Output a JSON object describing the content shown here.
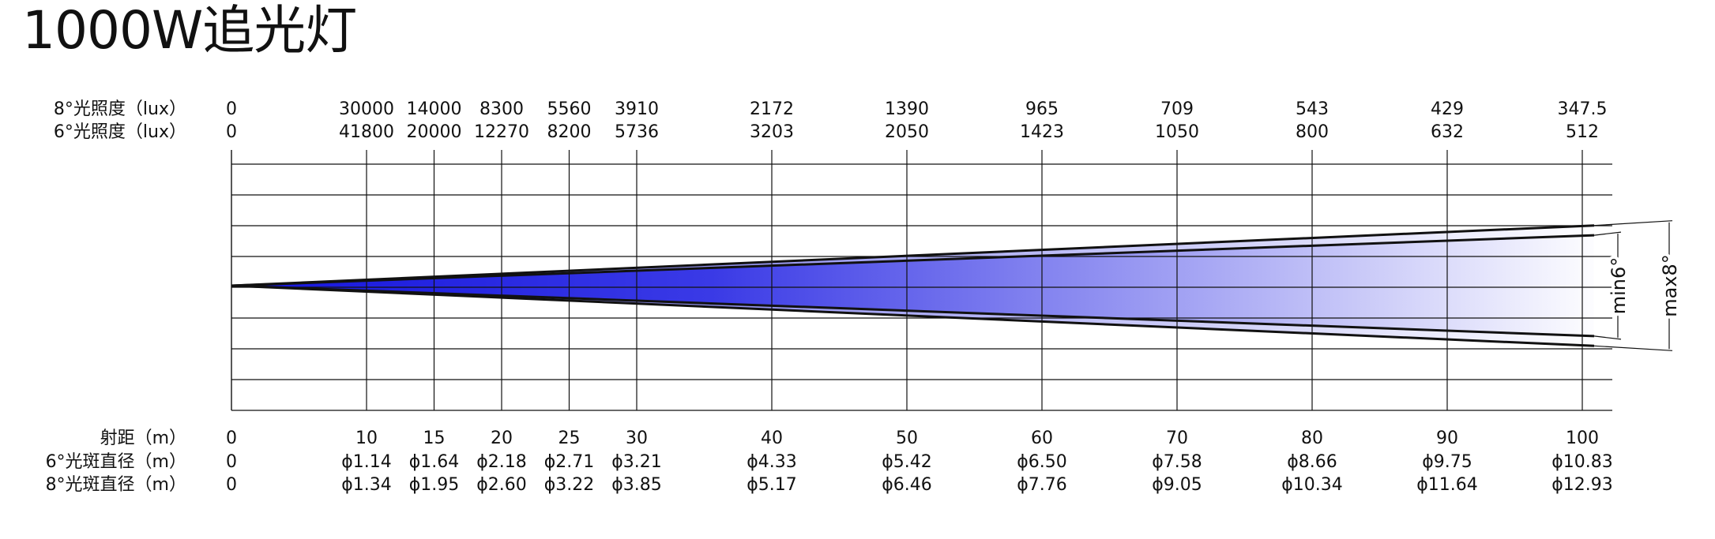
{
  "title": "1000W追光灯",
  "labels": {
    "lux8": "8°光照度（lux）",
    "lux6": "6°光照度（lux）",
    "distance": "射距（m）",
    "dia6": "6°光斑直径（m）",
    "dia8": "8°光斑直径（m）"
  },
  "beam_labels": {
    "min": "min6°",
    "max": "max8°"
  },
  "colors": {
    "beam_dark": "#1515dd",
    "beam_light": "#ffffff",
    "lines": "#111111"
  },
  "chart_data": {
    "type": "table",
    "distance_m": [
      0,
      10,
      15,
      20,
      25,
      30,
      40,
      50,
      60,
      70,
      80,
      90,
      100
    ],
    "distance_labels": [
      "0",
      "10",
      "15",
      "20",
      "25",
      "30",
      "40",
      "50",
      "60",
      "70",
      "80",
      "90",
      "100"
    ],
    "lux_8deg": [
      "0",
      "30000",
      "14000",
      "8300",
      "5560",
      "3910",
      "2172",
      "1390",
      "965",
      "709",
      "543",
      "429",
      "347.5"
    ],
    "lux_6deg": [
      "0",
      "41800",
      "20000",
      "12270",
      "8200",
      "5736",
      "3203",
      "2050",
      "1423",
      "1050",
      "800",
      "632",
      "512"
    ],
    "spot_diameter_6deg": [
      "0",
      "ϕ1.14",
      "ϕ1.64",
      "ϕ2.18",
      "ϕ2.71",
      "ϕ3.21",
      "ϕ4.33",
      "ϕ5.42",
      "ϕ6.50",
      "ϕ7.58",
      "ϕ8.66",
      "ϕ9.75",
      "ϕ10.83"
    ],
    "spot_diameter_8deg": [
      "0",
      "ϕ1.34",
      "ϕ1.95",
      "ϕ2.60",
      "ϕ3.22",
      "ϕ3.85",
      "ϕ5.17",
      "ϕ6.46",
      "ϕ7.76",
      "ϕ9.05",
      "ϕ10.34",
      "ϕ11.64",
      "ϕ12.93"
    ],
    "x_range": [
      0,
      102
    ],
    "grid": true
  }
}
